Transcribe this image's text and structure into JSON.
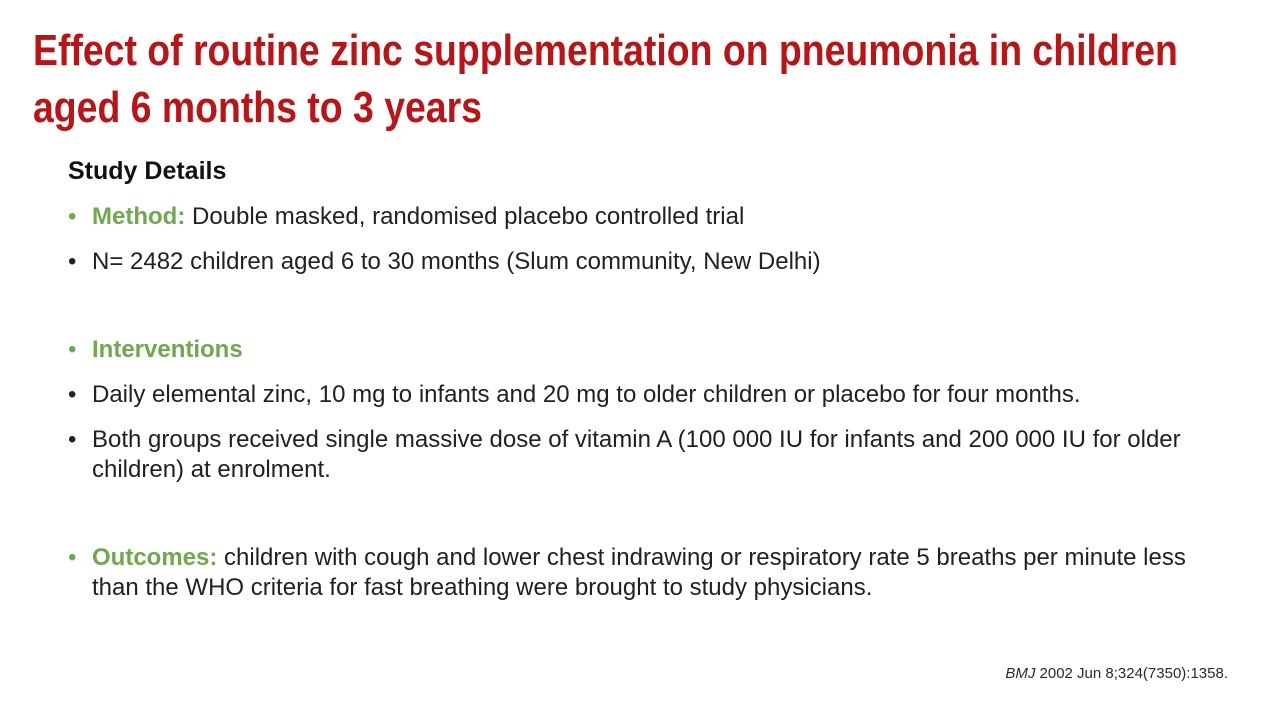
{
  "slide": {
    "title": "Effect of routine zinc supplementation on pneumonia in children aged 6 months to 3 years",
    "section_heading": "Study Details",
    "bullet_glyph": "•",
    "bullets": [
      {
        "label": "Method:",
        "text": " Double masked, randomised placebo controlled trial"
      },
      {
        "label": "",
        "text": "N= 2482 children aged 6 to 30 months (Slum community, New Delhi)"
      },
      {
        "label": "Interventions",
        "text": ""
      },
      {
        "label": "",
        "text": "Daily elemental zinc, 10 mg to infants and 20 mg to older children or placebo for four months."
      },
      {
        "label": "",
        "text": "Both groups received single massive dose of vitamin A (100 000 IU for infants and 200 000 IU for older children) at enrolment."
      },
      {
        "label": "Outcomes:",
        "text": " children with cough and lower chest indrawing or respiratory rate 5 breaths per minute less than the WHO criteria for fast breathing were brought to study physicians."
      }
    ],
    "citation": {
      "journal": "BMJ",
      "rest": " 2002 Jun 8;324(7350):1358."
    },
    "colors": {
      "title_red": "#ba1416",
      "accent_green": "#6fa84e",
      "body_text": "#212121",
      "background": "#ffffff"
    }
  }
}
